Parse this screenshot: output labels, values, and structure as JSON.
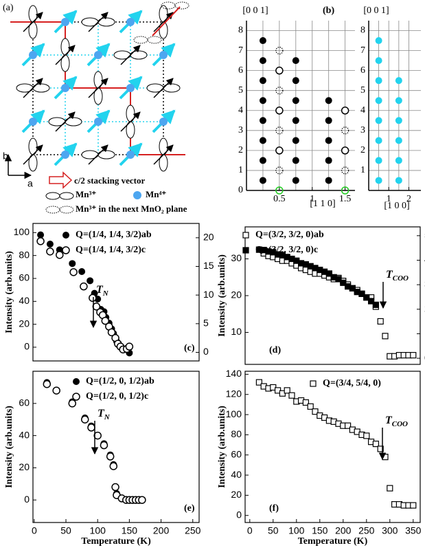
{
  "diagram": {
    "panel_label": "(a)",
    "axis_b": "b",
    "axis_a": "a",
    "legend": [
      "c/2 stacking vector",
      "Mn³⁺",
      "Mn⁴⁺",
      "Mn³⁺ in the next MnO₂ plane"
    ]
  },
  "chart_data": [
    {
      "type": "scatter",
      "panel_label": "(b)",
      "ylabel": "[0 0 1]",
      "xlabel": "[1 1 0]",
      "xlim": [
        0,
        1.65
      ],
      "ylim": [
        0,
        8.5
      ],
      "xticks": [
        0.5,
        1,
        1.5
      ],
      "yticks": [
        0,
        1,
        2,
        3,
        4,
        5,
        6,
        7,
        8
      ],
      "xgrid": [
        0.25,
        0.5,
        0.75,
        1,
        1.25,
        1.5
      ],
      "grid": true,
      "series": [
        {
          "color": "#000000",
          "marker": "filled",
          "x": [
            0.25,
            0.25,
            0.25,
            0.25,
            0.25,
            0.25,
            0.25,
            0.25,
            0.75,
            0.75,
            0.75,
            0.75,
            0.75,
            0.75,
            0.75,
            1.25,
            1.25,
            1.25,
            1.25,
            1.25
          ],
          "values": [
            0.5,
            1.5,
            2.5,
            3.5,
            4.5,
            5.5,
            6.5,
            7.5,
            0.5,
            1.5,
            2.5,
            3.5,
            4.5,
            5.5,
            6.5,
            0.5,
            1.5,
            2.5,
            3.5,
            4.5
          ]
        },
        {
          "color": "#000000",
          "marker": "open",
          "x": [
            0.5,
            0.5,
            0.5,
            1.5,
            1.5
          ],
          "values": [
            2,
            4,
            6,
            2,
            4
          ]
        },
        {
          "color": "#000000",
          "marker": "dotted",
          "x": [
            0.5,
            0.5,
            0.5,
            0.5,
            1.5,
            1.5
          ],
          "values": [
            1,
            3,
            5,
            7,
            1,
            3
          ]
        },
        {
          "color": "#22cc22",
          "marker": "open",
          "x": [
            0.5,
            1.5
          ],
          "values": [
            0,
            0
          ]
        }
      ]
    },
    {
      "type": "scatter",
      "ylabel": "[0 0 1]",
      "xlabel": "[1 0 0]",
      "xlim": [
        0,
        2.6
      ],
      "ylim": [
        0,
        8.5
      ],
      "xticks": [
        1,
        2
      ],
      "yticks": [
        1,
        2,
        3,
        4,
        5,
        6,
        7,
        8
      ],
      "xgrid": [
        0.5,
        1,
        1.5,
        2
      ],
      "grid": true,
      "series": [
        {
          "color": "#22d3ee",
          "marker": "filled",
          "x": [
            0.5,
            0.5,
            0.5,
            0.5,
            0.5,
            0.5,
            0.5,
            0.5,
            1.5,
            1.5,
            1.5,
            1.5,
            1.5,
            1.5
          ],
          "values": [
            0.5,
            1.5,
            2.5,
            3.5,
            4.5,
            5.5,
            6.5,
            7.5,
            0.5,
            1.5,
            2.5,
            3.5,
            4.5,
            5.5
          ]
        }
      ]
    },
    {
      "type": "scatter",
      "panel_label": "(c)",
      "ylabel": "Intensity (arb.units)",
      "frame": true,
      "xlim": [
        -2,
        260
      ],
      "ylim": [
        -12,
        108
      ],
      "yticks": [
        0,
        20,
        40,
        60,
        80,
        100
      ],
      "y2lim": [
        -1.5,
        22.5
      ],
      "y2ticks": [
        0,
        5,
        10,
        15,
        20
      ],
      "annotation": {
        "text": "T",
        "subscript": "N"
      },
      "series": [
        {
          "name": "Q=(1/4, 1/4, 3/2)ab",
          "color": "#000000",
          "marker": "filled",
          "x": [
            10,
            25,
            40,
            60,
            75,
            88,
            95,
            100,
            105,
            110,
            113,
            118,
            122,
            125,
            128,
            130,
            133,
            137,
            140,
            150
          ],
          "values": [
            98,
            90,
            85,
            73,
            66,
            58,
            47,
            42,
            33,
            31,
            26,
            21,
            16,
            12,
            8,
            5,
            2,
            0,
            -2,
            -5
          ]
        },
        {
          "name": "Q=(1/4, 1/4, 3/2)c",
          "color": "#000000",
          "marker": "open",
          "axis": "y2",
          "x": [
            10,
            25,
            40,
            62,
            78,
            92,
            98,
            104,
            108,
            112,
            118,
            122,
            128,
            132,
            136,
            140,
            146,
            150
          ],
          "values": [
            19.4,
            17.6,
            17.0,
            14.0,
            11.5,
            9.5,
            8.0,
            7.0,
            6.5,
            5.5,
            4.5,
            3.5,
            2.5,
            1.5,
            1.0,
            0.5,
            0.6,
            1.0
          ]
        }
      ]
    },
    {
      "type": "scatter",
      "panel_label": "(d)",
      "ylabel": "Intensity (arb.units)",
      "frame": true,
      "xlim": [
        -10,
        365
      ],
      "ylim": [
        1.3,
        38.7
      ],
      "yticks": [
        10,
        20,
        30
      ],
      "y2lim": [
        -2.5,
        53.6
      ],
      "y2ticks": [
        0,
        10,
        20,
        30,
        40,
        50
      ],
      "annotation": {
        "text": "T",
        "subscript": "COO"
      },
      "series": [
        {
          "name": "Q=(3/2, 3/2, 0)ab",
          "color": "#000000",
          "marker": "square-open",
          "x": [
            30,
            40,
            50,
            60,
            70,
            80,
            90,
            100,
            110,
            120,
            130,
            140,
            150,
            160,
            170,
            180,
            190,
            200,
            210,
            220,
            230,
            240,
            250,
            260,
            270,
            280,
            290,
            300,
            310,
            320,
            330,
            340,
            350
          ],
          "values": [
            31.5,
            30.8,
            30.5,
            30,
            29.5,
            29.5,
            28.8,
            28.2,
            27.5,
            27,
            26.5,
            26,
            26,
            25.5,
            25,
            24.5,
            24.8,
            24,
            23,
            22,
            21.5,
            20.5,
            19.5,
            19.5,
            17,
            13,
            9,
            3.5,
            3.5,
            3.8,
            3.8,
            3.8,
            3.8
          ]
        },
        {
          "name": "Q=(3/2, 3/2, 0)c",
          "color": "#000000",
          "marker": "square-filled",
          "x": [
            20,
            30,
            40,
            50,
            60,
            70,
            80,
            90,
            100,
            110,
            120,
            130,
            140,
            150,
            160,
            170,
            180,
            190,
            200,
            210,
            220,
            230,
            240,
            250,
            260,
            270
          ],
          "values": [
            32.5,
            32.4,
            32,
            31.8,
            31.2,
            31,
            30.5,
            30,
            29.5,
            28.8,
            28.5,
            28,
            27.5,
            27,
            26.5,
            26,
            25,
            24.5,
            23.5,
            22.5,
            22,
            21,
            20.5,
            19.5,
            18.5,
            17.5
          ]
        }
      ]
    },
    {
      "type": "scatter",
      "panel_label": "(e)",
      "ylabel": "Intensity (arb.units)",
      "xlabel": "Temperature (K)",
      "frame": true,
      "xlim": [
        -2,
        260
      ],
      "ylim": [
        -14,
        80
      ],
      "xticks": [
        0,
        50,
        100,
        150,
        200,
        250
      ],
      "yticks": [
        0,
        20,
        40,
        60
      ],
      "annotation": {
        "text": "T",
        "subscript": "N"
      },
      "series": [
        {
          "name": "Q=(1/2, 0, 1/2)ab",
          "color": "#000000",
          "marker": "filled",
          "x": [
            20,
            35,
            60,
            80,
            90,
            100,
            110,
            120,
            125,
            128,
            130,
            138,
            145,
            150,
            155,
            160,
            165,
            170
          ],
          "values": [
            73,
            68,
            61,
            51,
            46,
            40,
            35,
            28,
            22,
            8,
            4,
            1,
            0,
            0,
            0,
            0,
            0,
            0
          ]
        },
        {
          "name": "Q=(1/2, 0, 1/2)c",
          "color": "#000000",
          "marker": "open",
          "x": [
            20,
            35,
            60,
            80,
            90,
            100,
            110,
            120,
            125,
            128,
            130,
            138,
            145,
            150,
            155,
            160,
            165,
            170
          ],
          "values": [
            72,
            68,
            60,
            50,
            45,
            40,
            34,
            27,
            21,
            8,
            3,
            1,
            0,
            0,
            0,
            0,
            0,
            0
          ]
        }
      ]
    },
    {
      "type": "scatter",
      "panel_label": "(f)",
      "ylabel": "Intensity (arb.units)",
      "xlabel": "Temperature (K)",
      "frame": true,
      "xlim": [
        -10,
        365
      ],
      "ylim": [
        -7,
        143
      ],
      "xticks": [
        0,
        50,
        100,
        150,
        200,
        250,
        300,
        350
      ],
      "yticks": [
        0,
        20,
        40,
        60,
        80,
        100,
        120,
        140
      ],
      "annotation": {
        "text": "T",
        "subscript": "COO"
      },
      "series": [
        {
          "name": "Q=(3/4, 5/4, 0)",
          "color": "#000000",
          "marker": "square-open",
          "x": [
            20,
            30,
            40,
            50,
            60,
            70,
            80,
            90,
            100,
            110,
            120,
            130,
            140,
            150,
            160,
            170,
            180,
            190,
            200,
            210,
            220,
            230,
            240,
            250,
            260,
            270,
            280,
            290,
            300,
            310,
            320,
            330,
            340,
            350
          ],
          "values": [
            132,
            128,
            126,
            127,
            124,
            121,
            124,
            119,
            113,
            114,
            112,
            108,
            103,
            99,
            97,
            94,
            93,
            91,
            89,
            89,
            85,
            83,
            80,
            79,
            73,
            71,
            66,
            58,
            27,
            11,
            11,
            10,
            10,
            10
          ]
        }
      ]
    }
  ]
}
